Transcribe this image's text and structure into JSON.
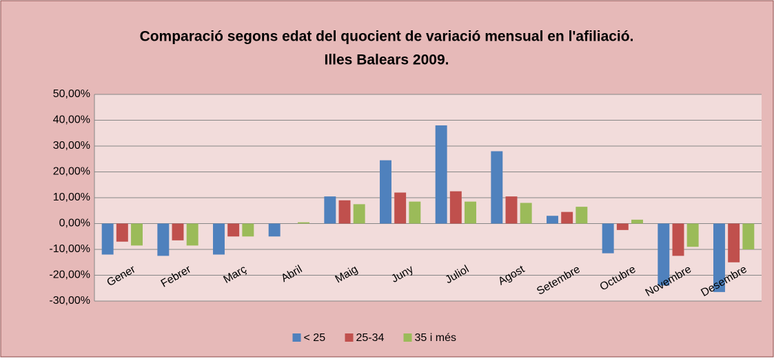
{
  "chart_data": {
    "type": "bar",
    "title": [
      "Comparació segons edat del quocient de variació mensual en l'afiliació.",
      "Illes Balears 2009."
    ],
    "categories": [
      "Gener",
      "Febrer",
      "Març",
      "Abril",
      "Maig",
      "Juny",
      "Juliol",
      "Agost",
      "Setembre",
      "Octubre",
      "Novembre",
      "Desembre"
    ],
    "series": [
      {
        "name": "< 25",
        "color": "#4f81bd",
        "values": [
          -12,
          -12.5,
          -12,
          -5,
          10.5,
          24.5,
          38,
          28,
          3,
          -11.5,
          -24,
          -26.5
        ]
      },
      {
        "name": "25-34",
        "color": "#c0504d",
        "values": [
          -7,
          -6.5,
          -5,
          0,
          9,
          12,
          12.5,
          10.5,
          4.5,
          -2.5,
          -12.5,
          -15
        ]
      },
      {
        "name": "35 i més",
        "color": "#9bbb59",
        "values": [
          -8.5,
          -8.5,
          -5,
          0.5,
          7.5,
          8.5,
          8.5,
          8,
          6.5,
          1.5,
          -9,
          -10
        ]
      }
    ],
    "ylim": [
      -30,
      50
    ],
    "yticks": [
      {
        "value": -30,
        "label": "-30,00%"
      },
      {
        "value": -20,
        "label": "-20,00%"
      },
      {
        "value": -10,
        "label": "-10,00%"
      },
      {
        "value": 0,
        "label": "0,00%"
      },
      {
        "value": 10,
        "label": "10,00%"
      },
      {
        "value": 20,
        "label": "20,00%"
      },
      {
        "value": 30,
        "label": "30,00%"
      },
      {
        "value": 40,
        "label": "40,00%"
      },
      {
        "value": 50,
        "label": "50,00%"
      }
    ],
    "grid": true,
    "legend": "bottom"
  }
}
